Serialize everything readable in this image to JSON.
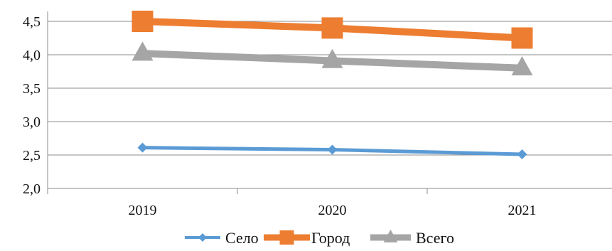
{
  "chart_data": {
    "type": "line",
    "categories": [
      "2019",
      "2020",
      "2021"
    ],
    "series": [
      {
        "name": "Село",
        "values": [
          2.61,
          2.58,
          2.51
        ],
        "color": "#5B9BD5",
        "marker": "diamond"
      },
      {
        "name": "Город",
        "values": [
          4.5,
          4.4,
          4.25
        ],
        "color": "#ED7D31",
        "marker": "square"
      },
      {
        "name": "Всего",
        "values": [
          4.02,
          3.91,
          3.8
        ],
        "color": "#A5A5A5",
        "marker": "triangle"
      }
    ],
    "ylim": [
      2.0,
      4.5
    ],
    "yticks": [
      "2,0",
      "2,5",
      "3,0",
      "3,5",
      "4,0",
      "4,5"
    ],
    "grid": true,
    "legend_position": "bottom",
    "title": "",
    "xlabel": "",
    "ylabel": ""
  }
}
